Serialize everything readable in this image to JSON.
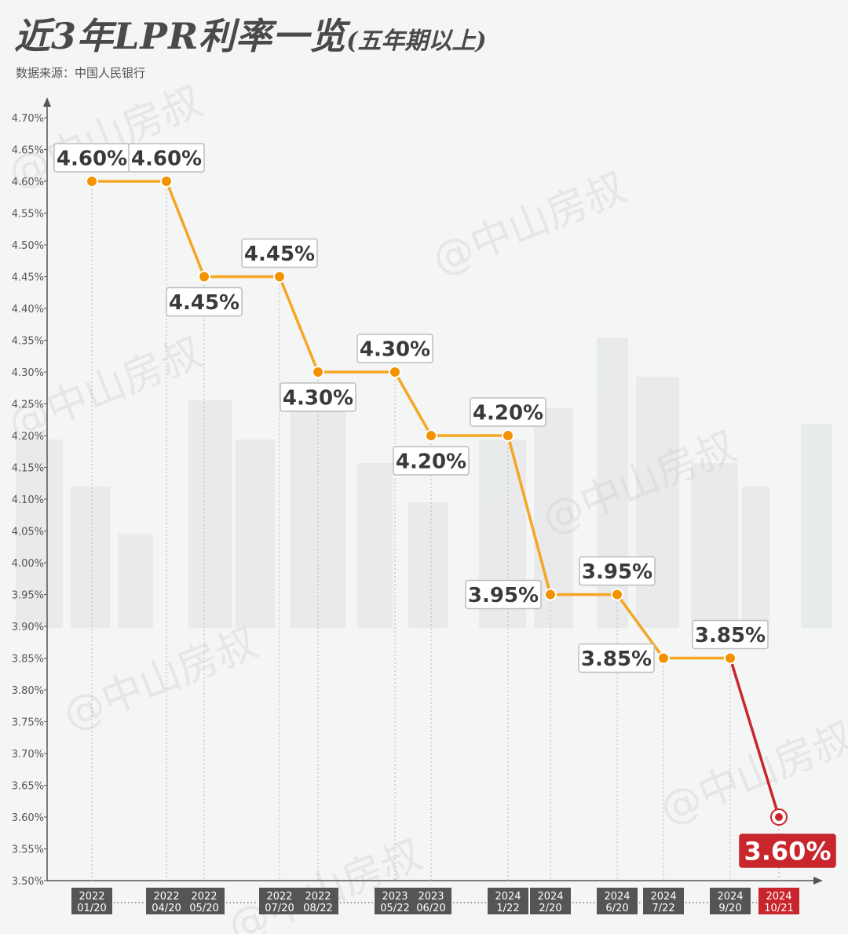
{
  "header": {
    "title": "近3年LPR利率一览",
    "subtitle": "(五年期以上)",
    "source": "数据来源：中国人民银行"
  },
  "watermark": "@中山房叔",
  "colors": {
    "line": "#f5a623",
    "point": "#f39200",
    "highlight": "#c9252c",
    "axis": "#555555",
    "label_text": "#3a3a3a"
  },
  "chart_data": {
    "type": "line",
    "title": "近3年LPR利率一览(五年期以上)",
    "xlabel": "",
    "ylabel": "",
    "ylim": [
      3.5,
      4.7
    ],
    "y_step": 0.05,
    "y_ticks": [
      "3.50%",
      "3.55%",
      "3.60%",
      "3.65%",
      "3.70%",
      "3.75%",
      "3.80%",
      "3.85%",
      "3.90%",
      "3.95%",
      "4.00%",
      "4.05%",
      "4.10%",
      "4.15%",
      "4.20%",
      "4.25%",
      "4.30%",
      "4.35%",
      "4.40%",
      "4.45%",
      "4.50%",
      "4.55%",
      "4.60%",
      "4.65%",
      "4.70%"
    ],
    "grid": false,
    "points": [
      {
        "year": "2022",
        "date": "01/20",
        "value": 4.6,
        "label": "4.60%",
        "label_pos": "above",
        "highlight": false
      },
      {
        "year": "2022",
        "date": "04/20",
        "value": 4.6,
        "label": "4.60%",
        "label_pos": "above",
        "highlight": false
      },
      {
        "year": "2022",
        "date": "05/20",
        "value": 4.45,
        "label": "4.45%",
        "label_pos": "below",
        "highlight": false
      },
      {
        "year": "2022",
        "date": "07/20",
        "value": 4.45,
        "label": "4.45%",
        "label_pos": "above",
        "highlight": false
      },
      {
        "year": "2022",
        "date": "08/22",
        "value": 4.3,
        "label": "4.30%",
        "label_pos": "below",
        "highlight": false
      },
      {
        "year": "2023",
        "date": "05/22",
        "value": 4.3,
        "label": "4.30%",
        "label_pos": "above",
        "highlight": false
      },
      {
        "year": "2023",
        "date": "06/20",
        "value": 4.2,
        "label": "4.20%",
        "label_pos": "below",
        "highlight": false
      },
      {
        "year": "2024",
        "date": "1/22",
        "value": 4.2,
        "label": "4.20%",
        "label_pos": "above",
        "highlight": false
      },
      {
        "year": "2024",
        "date": "2/20",
        "value": 3.95,
        "label": "3.95%",
        "label_pos": "left",
        "highlight": false
      },
      {
        "year": "2024",
        "date": "6/20",
        "value": 3.95,
        "label": "3.95%",
        "label_pos": "above",
        "highlight": false
      },
      {
        "year": "2024",
        "date": "7/22",
        "value": 3.85,
        "label": "3.85%",
        "label_pos": "left",
        "highlight": false
      },
      {
        "year": "2024",
        "date": "9/20",
        "value": 3.85,
        "label": "3.85%",
        "label_pos": "above",
        "highlight": false
      },
      {
        "year": "2024",
        "date": "10/21",
        "value": 3.6,
        "label": "3.60%",
        "label_pos": "below",
        "highlight": true
      }
    ]
  }
}
